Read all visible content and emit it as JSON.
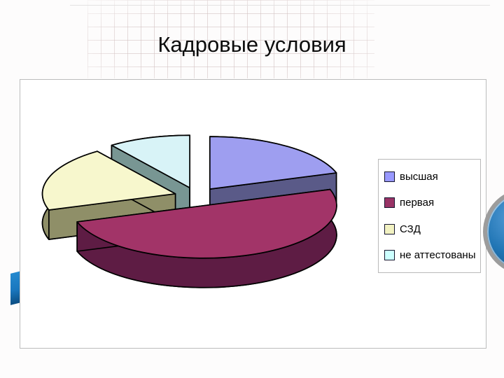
{
  "slide": {
    "title": "Кадровые условия"
  },
  "chart_data": {
    "type": "pie",
    "projection": "3d-exploded",
    "title": "Кадровые условия",
    "legend_position": "right",
    "data_labels_shown": false,
    "values_are": "estimated_percent",
    "series": [
      {
        "id": "vysshaya",
        "label": "высшая",
        "value": 20,
        "color": "#9999ff",
        "top_color": "#9e9ef0",
        "side_color": "#5a5a88"
      },
      {
        "id": "pervaya",
        "label": "первая",
        "value": 50,
        "color": "#993366",
        "top_color": "#a23468",
        "side_color": "#5e1c44"
      },
      {
        "id": "szd",
        "label": "СЗД",
        "value": 20,
        "color": "#f2f2c2",
        "top_color": "#f7f7cd",
        "side_color": "#8f8f68"
      },
      {
        "id": "ne-attestovany",
        "label": "не аттестованы",
        "value": 10,
        "color": "#ccffff",
        "top_color": "#d8f3f7",
        "side_color": "#789693"
      }
    ]
  },
  "decor": {
    "circle_ring_color": "#9c9c9c",
    "circle_fill_color": "#2176b5",
    "ribbon_color": "#1a77be"
  }
}
